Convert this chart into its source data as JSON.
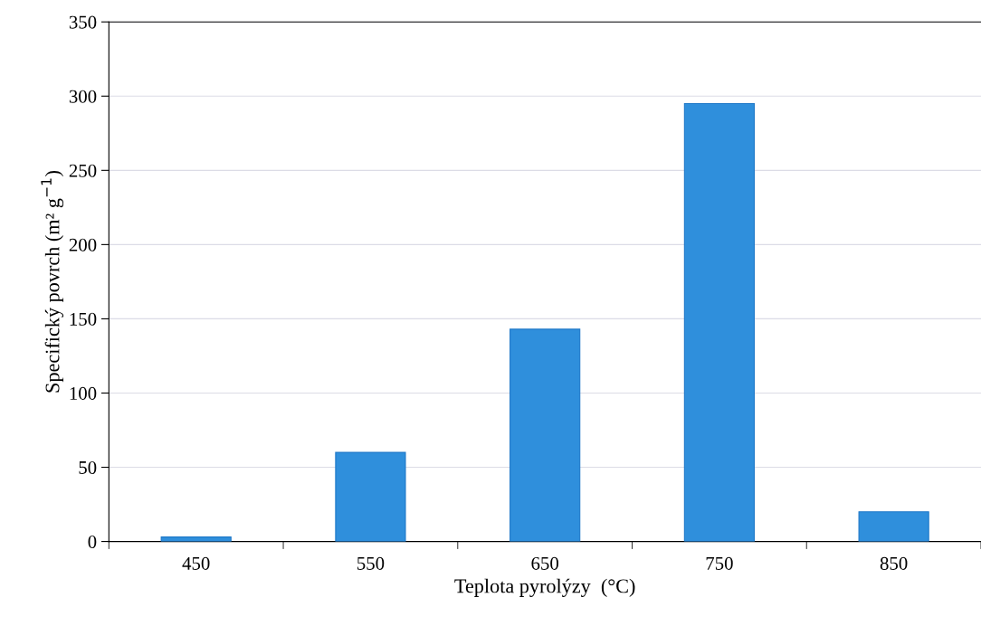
{
  "chart_data": {
    "type": "bar",
    "xlabel": "Teplota pyrolýzy  (°C)",
    "ylabel": "Specifický povrch (m² g$^{−1}$)",
    "categories": [
      "450",
      "550",
      "650",
      "750",
      "850"
    ],
    "values": [
      3,
      60,
      143,
      295,
      20
    ],
    "color": "#2f8fdc",
    "ylim": [
      0,
      350
    ],
    "yticks": [
      0,
      50,
      100,
      150,
      200,
      250,
      300,
      350
    ],
    "grid": "y"
  }
}
